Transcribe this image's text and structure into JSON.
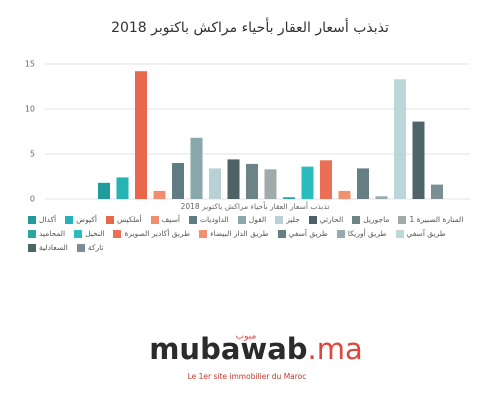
{
  "chart_data": {
    "type": "bar",
    "title": "تذبذب أسعار العقار بأحياء مراكش باكتوبر 2018",
    "xlabel": "تذبذب أسعار العقار بأحياء مراكش باكتوبر 2018",
    "categories": [
      null
    ],
    "ylim": [
      0,
      15
    ],
    "yticks": [
      0,
      5,
      10,
      15
    ],
    "grid": true,
    "series": [
      {
        "name": "أكدال",
        "color": "#1f9c9b",
        "values": [
          1.8
        ]
      },
      {
        "name": "أكيوض",
        "color": "#26b3b3",
        "values": [
          2.4
        ]
      },
      {
        "name": "أملكيس",
        "color": "#e8674d",
        "values": [
          14.2
        ]
      },
      {
        "name": "أسيف",
        "color": "#f28c6e",
        "values": [
          0.9
        ]
      },
      {
        "name": "الداوديات",
        "color": "#5e7c82",
        "values": [
          4.0
        ]
      },
      {
        "name": "القول",
        "color": "#8aa7ac",
        "values": [
          6.8
        ]
      },
      {
        "name": "جليز",
        "color": "#b9d1d5",
        "values": [
          3.4
        ]
      },
      {
        "name": "الحارثي",
        "color": "#4d6166",
        "values": [
          4.4
        ]
      },
      {
        "name": "ماجوريل",
        "color": "#6b8387",
        "values": [
          3.9
        ]
      },
      {
        "name": "المنارة الصبيرة 1",
        "color": "#9fabab",
        "values": [
          3.3
        ]
      },
      {
        "name": "المحاميد",
        "color": "#2aa6a0",
        "values": [
          0.2
        ]
      },
      {
        "name": "النخيل",
        "color": "#2bbcbd",
        "values": [
          3.6
        ]
      },
      {
        "name": "طريق أكادير الصويرة",
        "color": "#ea6f55",
        "values": [
          4.3
        ]
      },
      {
        "name": "طريق الدار البيضاء",
        "color": "#f3906f",
        "values": [
          0.9
        ]
      },
      {
        "name": "طريق آسفي",
        "color": "#667f84",
        "values": [
          3.4
        ]
      },
      {
        "name": "طريق أوريكا",
        "color": "#97aaad",
        "values": [
          0.3
        ]
      },
      {
        "name": "طريق آسفي",
        "color": "#bcd6da",
        "values": [
          13.3
        ]
      },
      {
        "name": "السعادلية",
        "color": "#4f6469",
        "values": [
          8.6
        ]
      },
      {
        "name": "تاركة",
        "color": "#7a8f92",
        "values": [
          1.6
        ]
      }
    ]
  },
  "logo": {
    "name": "mubawab",
    "tld": ".ma",
    "arabic": "مبوب",
    "tagline": "Le 1er site immobilier du Maroc"
  }
}
